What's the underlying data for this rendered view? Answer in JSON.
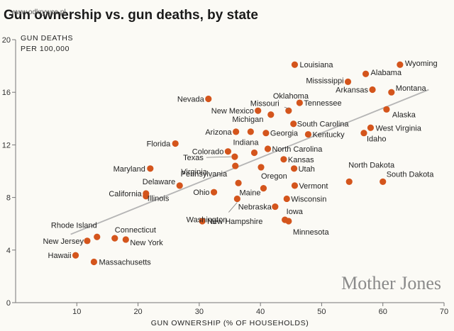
{
  "page": {
    "title": "Gun ownership vs. gun deaths, by state",
    "watermark": "www.odkrywca.pl",
    "brand": "Mother Jones"
  },
  "chart_data": {
    "type": "scatter",
    "title": "Gun ownership vs. gun deaths, by state",
    "xlabel": "GUN OWNERSHIP (% OF HOUSEHOLDS)",
    "ylabel_line1": "GUN DEATHS",
    "ylabel_line2": "PER 100,000",
    "xlim": [
      0,
      70
    ],
    "ylim": [
      0,
      20
    ],
    "xticks": [
      10,
      20,
      30,
      40,
      50,
      60,
      70
    ],
    "yticks": [
      0,
      4,
      8,
      12,
      16,
      20
    ],
    "grid": false,
    "colors": {
      "point": "#d4551c",
      "trend": "#b5b5b5"
    },
    "trendline": {
      "x": [
        9,
        67.5
      ],
      "y": [
        5.2,
        16.2
      ]
    },
    "points": [
      {
        "label": "Louisiana",
        "x": 45.6,
        "y": 18.1
      },
      {
        "label": "Wyoming",
        "x": 62.8,
        "y": 18.1
      },
      {
        "label": "Mississippi",
        "x": 54.3,
        "y": 16.8
      },
      {
        "label": "Alabama",
        "x": 57.2,
        "y": 17.4
      },
      {
        "label": "Arkansas",
        "x": 58.3,
        "y": 16.2
      },
      {
        "label": "Montana",
        "x": 61.4,
        "y": 16.0
      },
      {
        "label": "Oklahoma",
        "x": 44.6,
        "y": 14.6
      },
      {
        "label": "Tennessee",
        "x": 46.4,
        "y": 15.2
      },
      {
        "label": "Missouri",
        "x": 41.7,
        "y": 14.3
      },
      {
        "label": "Nevada",
        "x": 31.5,
        "y": 15.5
      },
      {
        "label": "New Mexico",
        "x": 39.6,
        "y": 14.6
      },
      {
        "label": "Alaska",
        "x": 60.6,
        "y": 14.7
      },
      {
        "label": "South Carolina",
        "x": 45.4,
        "y": 13.6
      },
      {
        "label": "Michigan",
        "x": 38.4,
        "y": 13.0
      },
      {
        "label": "Arizona",
        "x": 36.0,
        "y": 13.0
      },
      {
        "label": "Georgia",
        "x": 40.9,
        "y": 12.9
      },
      {
        "label": "Kentucky",
        "x": 47.8,
        "y": 12.8
      },
      {
        "label": "West Virginia",
        "x": 58.0,
        "y": 13.3
      },
      {
        "label": "Idaho",
        "x": 56.9,
        "y": 12.9
      },
      {
        "label": "Florida",
        "x": 26.1,
        "y": 12.1
      },
      {
        "label": "Indiana",
        "x": 39.0,
        "y": 11.4
      },
      {
        "label": "Colorado",
        "x": 34.7,
        "y": 11.5
      },
      {
        "label": "North Carolina",
        "x": 41.2,
        "y": 11.7
      },
      {
        "label": "Texas",
        "x": 35.8,
        "y": 11.1
      },
      {
        "label": "Kansas",
        "x": 43.8,
        "y": 10.9
      },
      {
        "label": "Virginia",
        "x": 35.9,
        "y": 10.4
      },
      {
        "label": "Oregon",
        "x": 40.1,
        "y": 10.3
      },
      {
        "label": "Utah",
        "x": 45.5,
        "y": 10.2
      },
      {
        "label": "Maryland",
        "x": 22.0,
        "y": 10.2
      },
      {
        "label": "North Dakota",
        "x": 54.5,
        "y": 9.2
      },
      {
        "label": "South Dakota",
        "x": 60.0,
        "y": 9.2
      },
      {
        "label": "Pennsylvania",
        "x": 36.4,
        "y": 9.1
      },
      {
        "label": "Delaware",
        "x": 26.8,
        "y": 8.9
      },
      {
        "label": "Vermont",
        "x": 45.6,
        "y": 8.9
      },
      {
        "label": "Maine",
        "x": 40.5,
        "y": 8.7
      },
      {
        "label": "Ohio",
        "x": 32.4,
        "y": 8.4
      },
      {
        "label": "California",
        "x": 21.3,
        "y": 8.3
      },
      {
        "label": "Illinois",
        "x": 21.3,
        "y": 8.1
      },
      {
        "label": "Wisconsin",
        "x": 44.3,
        "y": 7.9
      },
      {
        "label": "Washington",
        "x": 36.2,
        "y": 7.9
      },
      {
        "label": "Nebraska",
        "x": 42.4,
        "y": 7.3
      },
      {
        "label": "Iowa",
        "x": 44.0,
        "y": 6.3
      },
      {
        "label": "New Hampshire",
        "x": 30.5,
        "y": 6.2
      },
      {
        "label": "Minnesota",
        "x": 44.6,
        "y": 6.2
      },
      {
        "label": "Rhode Island",
        "x": 13.3,
        "y": 5.0
      },
      {
        "label": "Connecticut",
        "x": 16.2,
        "y": 4.9
      },
      {
        "label": "New Jersey",
        "x": 11.7,
        "y": 4.7
      },
      {
        "label": "New York",
        "x": 18.0,
        "y": 4.8
      },
      {
        "label": "Hawaii",
        "x": 9.8,
        "y": 3.6
      },
      {
        "label": "Massachusetts",
        "x": 12.8,
        "y": 3.1
      }
    ]
  }
}
